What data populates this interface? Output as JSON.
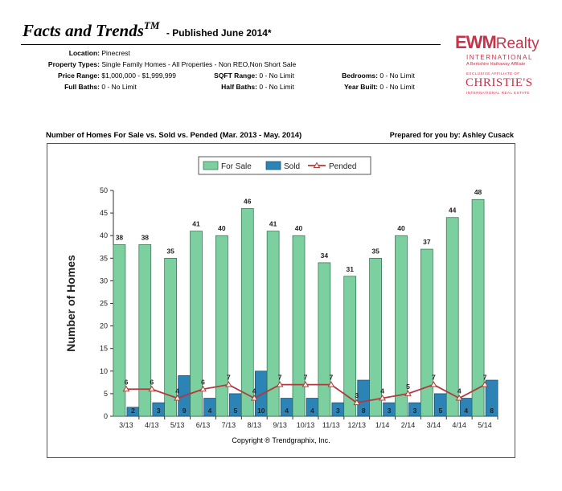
{
  "header": {
    "title": "Facts and Trends",
    "tm": "TM",
    "published": "- Published June 2014*"
  },
  "info": {
    "location_label": "Location:",
    "location": "Pinecrest",
    "types_label": "Property Types:",
    "types": "Single Family Homes - All Properties - Non REO,Non Short Sale",
    "price_label": "Price Range:",
    "price": "$1,000,000 - $1,999,999",
    "sqft_label": "SQFT Range:",
    "sqft": "0 - No Limit",
    "bedrooms_label": "Bedrooms:",
    "bedrooms": "0 - No Limit",
    "fullbaths_label": "Full Baths:",
    "fullbaths": "0 - No Limit",
    "halfbaths_label": "Half Baths:",
    "halfbaths": "0 - No Limit",
    "yearbuilt_label": "Year Built:",
    "yearbuilt": "0 - No Limit"
  },
  "logo": {
    "ewm": "EWM",
    "realty": "Realty",
    "international": "INTERNATIONAL",
    "affiliate": "A Berkshire Hathaway Affiliate",
    "exclusive": "EXCLUSIVE AFFILIATE OF",
    "christies": "CHRISTIE'S",
    "ire": "INTERNATIONAL REAL ESTATE"
  },
  "prepared_for": "Prepared for you by: Ashley Cusack",
  "copyright": "Copyright ® Trendgraphix, Inc.",
  "colors": {
    "for_sale": "#7ccf9f",
    "sold": "#2b83b6",
    "pended": "#b03a3e",
    "bg": "#ffffff"
  },
  "chart_data": {
    "type": "bar",
    "title": "Number of Homes For Sale vs. Sold vs. Pended (Mar. 2013 - May. 2014)",
    "ylabel": "Number of Homes",
    "xlabel": "",
    "ylim": [
      0,
      50
    ],
    "yticks": [
      0,
      5,
      10,
      15,
      20,
      25,
      30,
      35,
      40,
      45,
      50
    ],
    "legend_position": "top-center",
    "categories": [
      "3/13",
      "4/13",
      "5/13",
      "6/13",
      "7/13",
      "8/13",
      "9/13",
      "10/13",
      "11/13",
      "12/13",
      "1/14",
      "2/14",
      "3/14",
      "4/14",
      "5/14"
    ],
    "series": [
      {
        "name": "For Sale",
        "type": "bar",
        "values": [
          38,
          38,
          35,
          41,
          40,
          46,
          41,
          40,
          34,
          31,
          35,
          40,
          37,
          44,
          48
        ]
      },
      {
        "name": "Sold",
        "type": "bar",
        "values": [
          2,
          3,
          9,
          4,
          5,
          10,
          4,
          4,
          3,
          8,
          3,
          3,
          5,
          4,
          8
        ]
      },
      {
        "name": "Pended",
        "type": "line",
        "values": [
          6,
          6,
          4,
          6,
          7,
          4,
          7,
          7,
          7,
          3,
          4,
          5,
          7,
          4,
          7
        ]
      }
    ]
  }
}
